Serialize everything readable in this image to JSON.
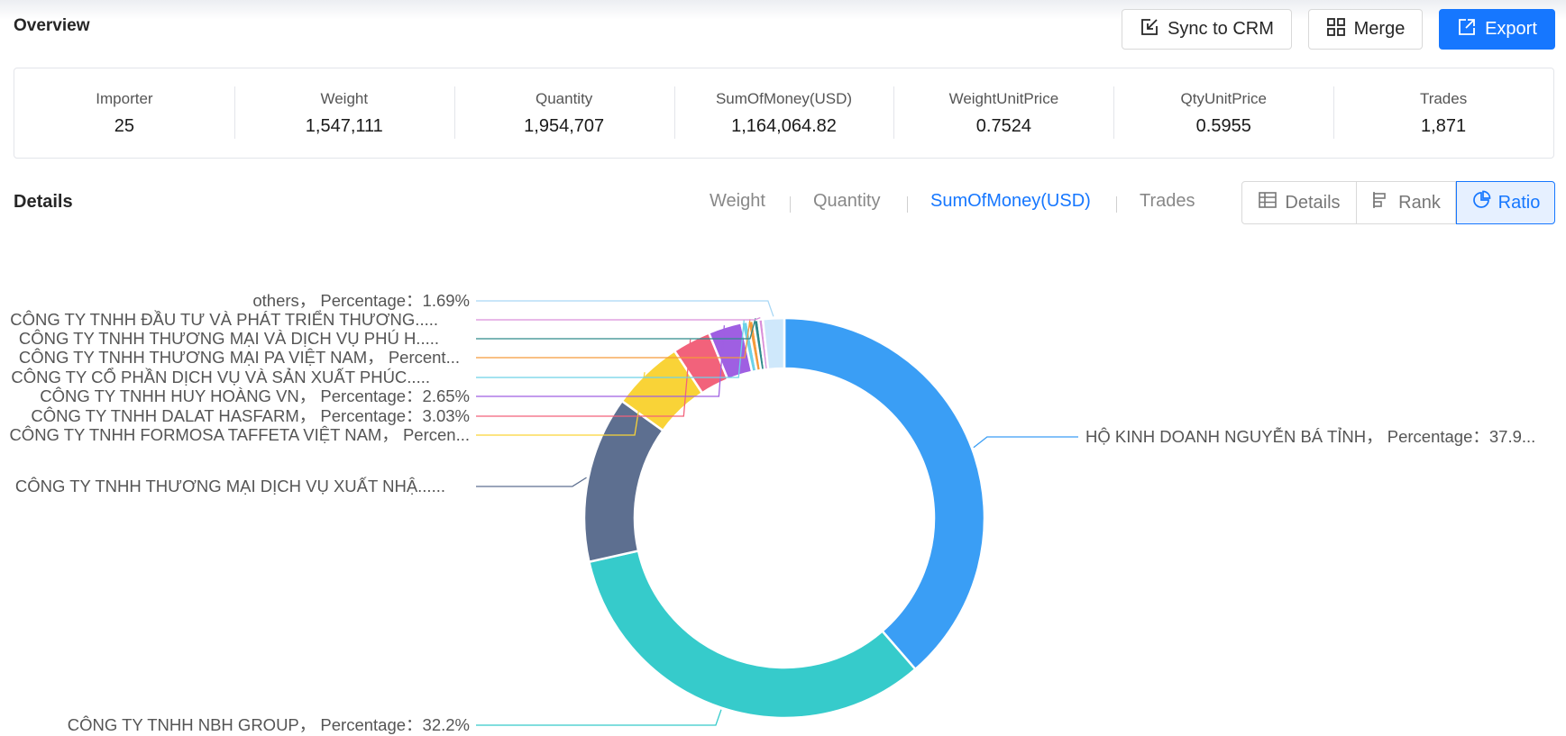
{
  "header": {
    "title": "Overview",
    "sync_label": "Sync to CRM",
    "merge_label": "Merge",
    "export_label": "Export"
  },
  "stats": [
    {
      "label": "Importer",
      "value": "25"
    },
    {
      "label": "Weight",
      "value": "1,547,111"
    },
    {
      "label": "Quantity",
      "value": "1,954,707"
    },
    {
      "label": "SumOfMoney(USD)",
      "value": "1,164,064.82"
    },
    {
      "label": "WeightUnitPrice",
      "value": "0.7524"
    },
    {
      "label": "QtyUnitPrice",
      "value": "0.5955"
    },
    {
      "label": "Trades",
      "value": "1,871"
    }
  ],
  "details": {
    "title": "Details",
    "metric_tabs": [
      "Weight",
      "Quantity",
      "SumOfMoney(USD)",
      "Trades"
    ],
    "active_metric": "SumOfMoney(USD)",
    "views": [
      "Details",
      "Rank",
      "Ratio"
    ],
    "active_view": "Ratio"
  },
  "colors": {
    "accent": "#1677ff"
  },
  "chart_data": {
    "type": "pie",
    "variant": "donut",
    "title": "",
    "slices": [
      {
        "label": "HỘ KINH DOANH NGUYỄN BÁ TỈNH，  Percentage：37.9...",
        "value": 37.9,
        "color": "#3a9ef5"
      },
      {
        "label": "CÔNG TY TNHH NBH GROUP，  Percentage：32.2%",
        "value": 32.2,
        "color": "#36cbcb"
      },
      {
        "label": "CÔNG TY TNHH THƯƠNG MẠI DỊCH VỤ XUẤT NHẬ......",
        "value": 13.2,
        "color": "#5d6f90"
      },
      {
        "label": "CÔNG TY TNHH FORMOSA TAFFETA VIỆT NAM，  Percen...",
        "value": 5.7,
        "color": "#f9d337"
      },
      {
        "label": "CÔNG TY TNHH DALAT HASFARM，  Percentage：3.03%",
        "value": 3.03,
        "color": "#f2627b"
      },
      {
        "label": "CÔNG TY TNHH HUY HOÀNG VN，  Percentage：2.65%",
        "value": 2.65,
        "color": "#9f5fe2"
      },
      {
        "label": "CÔNG TY CỔ PHẦN DỊCH VỤ VÀ SẢN XUẤT PHÚC.....",
        "value": 0.5,
        "color": "#6ed2e8"
      },
      {
        "label": "CÔNG TY TNHH THƯƠNG MẠI PA VIỆT NAM，  Percent...",
        "value": 0.45,
        "color": "#f59a3b"
      },
      {
        "label": "CÔNG TY TNHH THƯƠNG MẠI VÀ DỊCH VỤ PHÚ H.....",
        "value": 0.4,
        "color": "#2d8a8a"
      },
      {
        "label": "CÔNG TY TNHH ĐẦU TƯ VÀ PHÁT TRIỂN THƯƠNG.....",
        "value": 0.35,
        "color": "#d98fd9"
      },
      {
        "label": "others，  Percentage：1.69%",
        "value": 1.69,
        "color": "#cfe8fb"
      }
    ]
  }
}
